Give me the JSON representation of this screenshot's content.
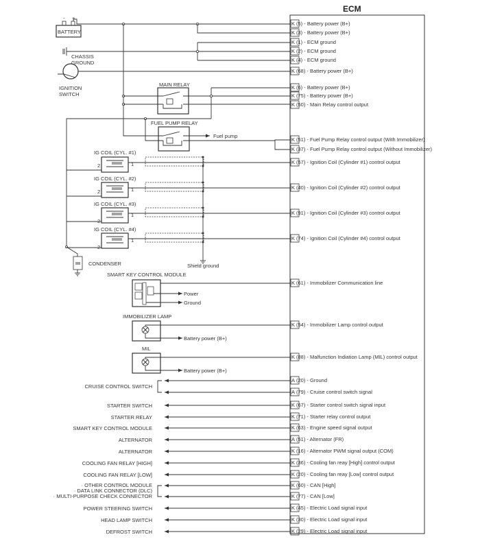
{
  "ecm": {
    "title": "ECM",
    "pins": [
      {
        "connector": "K",
        "pin": "5",
        "label": "Battery power (B+)"
      },
      {
        "connector": "K",
        "pin": "3",
        "label": "Battery power (B+)"
      },
      {
        "connector": "K",
        "pin": "1",
        "label": "ECM ground"
      },
      {
        "connector": "K",
        "pin": "2",
        "label": "ECM ground"
      },
      {
        "connector": "K",
        "pin": "4",
        "label": "ECM ground"
      },
      {
        "connector": "K",
        "pin": "68",
        "label": "Battery power (B+)"
      },
      {
        "connector": "K",
        "pin": "6",
        "label": "Battery power (B+)"
      },
      {
        "connector": "K",
        "pin": "75",
        "label": "Battery power (B+)"
      },
      {
        "connector": "K",
        "pin": "50",
        "label": "Main Relay control output"
      },
      {
        "connector": "K",
        "pin": "51",
        "label": "Fuel Pump Relay control output (With Immobilizer)"
      },
      {
        "connector": "K",
        "pin": "37",
        "label": "Fuel Pump Relay control output (Without Immobilizer)"
      },
      {
        "connector": "K",
        "pin": "57",
        "label": " Ignition Coil (Cylinder #1) control output"
      },
      {
        "connector": "K",
        "pin": "40",
        "label": "Ignition Coil (Cylinder #2) control output"
      },
      {
        "connector": "K",
        "pin": "91",
        "label": "Ignition Coil (Cylinder #3) control output"
      },
      {
        "connector": "K",
        "pin": "74",
        "label": "Ignition Coil (Cylinder #4) control output"
      },
      {
        "connector": "K",
        "pin": "61",
        "label": "Immobilizer Communication line"
      },
      {
        "connector": "K",
        "pin": "54",
        "label": "Immobilizer Lamp control output"
      },
      {
        "connector": "K",
        "pin": "88",
        "label": "Malfunction Indiation Lamp (MIL) control output"
      },
      {
        "connector": "A",
        "pin": "20",
        "label": "Ground"
      },
      {
        "connector": "A",
        "pin": "79",
        "label": "Cruise control switch signal"
      },
      {
        "connector": "K",
        "pin": "67",
        "label": "Starter control switch signal input"
      },
      {
        "connector": "K",
        "pin": "71",
        "label": "Starter relay control output"
      },
      {
        "connector": "K",
        "pin": "63",
        "label": "Engine speed signal output"
      },
      {
        "connector": "A",
        "pin": "51",
        "label": "Alternator (FR)"
      },
      {
        "connector": "K",
        "pin": "16",
        "label": "Alternator PWM signal output (COM)"
      },
      {
        "connector": "K",
        "pin": "36",
        "label": "Cooling fan reay [High] control output"
      },
      {
        "connector": "K",
        "pin": "20",
        "label": "Cooling fan reay [Low] control output"
      },
      {
        "connector": "K",
        "pin": "60",
        "label": "CAN [High]"
      },
      {
        "connector": "K",
        "pin": "77",
        "label": "CAN [Low]"
      },
      {
        "connector": "K",
        "pin": "45",
        "label": "Electric Load signal input"
      },
      {
        "connector": "K",
        "pin": "30",
        "label": "Electric Load signal input"
      },
      {
        "connector": "K",
        "pin": "29",
        "label": "Electric Load signal input"
      }
    ]
  },
  "components": {
    "battery": "BATTERY",
    "battery_minus": "-",
    "battery_plus": "+",
    "chassis_ground": [
      "CHASSIS",
      "GROUND"
    ],
    "ignition_switch": [
      "IGNITION",
      "SWITCH"
    ],
    "main_relay": "MAIN RELAY",
    "fuel_pump_relay": "FUEL PUMP RELAY",
    "fuel_pump": "Fuel pump",
    "ig_coils": [
      "IG COIL (CYL. #1)",
      "IG COIL (CYL. #2)",
      "IG COIL (CYL. #3)",
      "IG COIL (CYL. #4)"
    ],
    "coil_pin_1": "1",
    "coil_pin_2": "2",
    "condenser": "CONDENSER",
    "shield_ground": "Shield ground",
    "smart_key_module": "SMART KEY CONTROL MODULE",
    "power": "Power",
    "ground": "Ground",
    "immobilizer_lamp": "IMMOBILIZER LAMP",
    "mil": "MIL",
    "battery_power": "Battery power (B+)"
  },
  "inputs": [
    "CRUISE CONTROL SWITCH",
    "STARTER SWITCH",
    "STARTER RELAY",
    "SMART KEY CONTROL MODULE",
    "ALTERNATOR",
    "ALTERNATOR",
    "COOLING FAN RELAY [HIGH]",
    "COOLING FAN RELAY [LOW]",
    "· OTHER CONTROL MODULE",
    "· DATA LINK CONNECTOR (DLC)",
    "· MULTI-PURPOSE CHECK  CONNECTOR",
    "POWER STEERING SWITCH",
    "HEAD LAMP SWITCH",
    "DEFROST SWITCH"
  ],
  "colors": {
    "line": "#333333",
    "background": "#ffffff"
  }
}
